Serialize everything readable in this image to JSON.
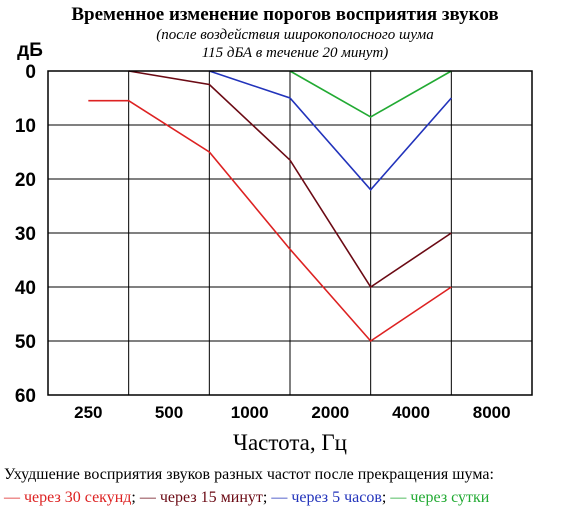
{
  "chart_data": {
    "type": "line",
    "title": "Временное изменение порогов восприятия звуков",
    "subtitle_lines": [
      "(после воздействия широкополосного шума",
      "115 дБА в течение 20 минут)"
    ],
    "ylabel": "дБ",
    "xlabel": "Частота, Гц",
    "categories": [
      "250",
      "500",
      "1000",
      "2000",
      "4000",
      "8000"
    ],
    "yticks": [
      "0",
      "10",
      "20",
      "30",
      "40",
      "50",
      "60"
    ],
    "ylim": [
      0,
      60
    ],
    "y_inverted": true,
    "grid": true,
    "note": "Ухудшение восприятия звуков разных частот после прекращения шума:",
    "legend_separators": [
      ";",
      ";",
      ";",
      ""
    ],
    "series": [
      {
        "name": "через 30 секунд",
        "color": "#dd2222",
        "points": [
          [
            0,
            5.5
          ],
          [
            1,
            5.5
          ],
          [
            2,
            15
          ],
          [
            3,
            33
          ],
          [
            4,
            50
          ],
          [
            5,
            40
          ]
        ]
      },
      {
        "name": "через 15 минут",
        "color": "#6b0a14",
        "points": [
          [
            1,
            0
          ],
          [
            2,
            2.5
          ],
          [
            3,
            16.5
          ],
          [
            4,
            40
          ],
          [
            5,
            30
          ]
        ]
      },
      {
        "name": "через 5 часов",
        "color": "#2233bb",
        "points": [
          [
            2,
            0
          ],
          [
            3,
            5
          ],
          [
            4,
            22
          ],
          [
            5,
            5
          ]
        ]
      },
      {
        "name": "через сутки",
        "color": "#22aa33",
        "points": [
          [
            3,
            0
          ],
          [
            4,
            8.5
          ],
          [
            5,
            0
          ]
        ]
      }
    ]
  }
}
